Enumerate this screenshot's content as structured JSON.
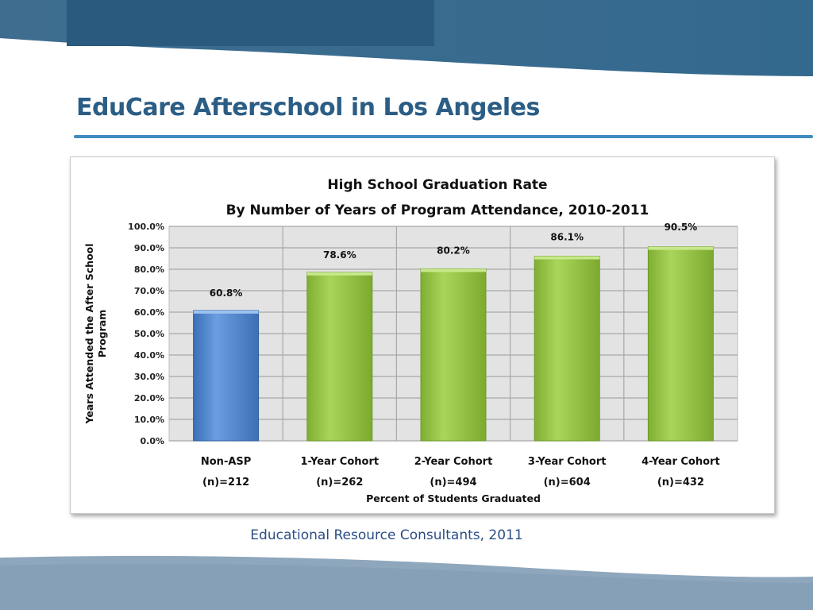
{
  "slide": {
    "title": "EduCare Afterschool in Los Angeles",
    "source": "Educational Resource Consultants, 2011"
  },
  "colors": {
    "title": "#2b5d85",
    "rule": "#3f8cc0",
    "non_asp_bar": "#5a8fd6",
    "cohort_bar": "#9ccc4a",
    "plot_background": "#e3e3e3"
  },
  "chart_data": {
    "type": "bar",
    "title": "High School Graduation Rate",
    "subtitle": "By Number of Years of Program Attendance, 2010-2011",
    "categories": [
      "Non-ASP",
      "1-Year Cohort",
      "2-Year Cohort",
      "3-Year Cohort",
      "4-Year Cohort"
    ],
    "category_sublabels": [
      "(n)=212",
      "(n)=262",
      "(n)=494",
      "(n)=604",
      "(n)=432"
    ],
    "values": [
      60.8,
      78.6,
      80.2,
      86.1,
      90.5
    ],
    "data_labels": [
      "60.8%",
      "78.6%",
      "80.2%",
      "86.1%",
      "90.5%"
    ],
    "bar_colors": [
      "#5a8fd6",
      "#9ccc4a",
      "#9ccc4a",
      "#9ccc4a",
      "#9ccc4a"
    ],
    "ylim": [
      0,
      100
    ],
    "ytick_values": [
      0,
      10,
      20,
      30,
      40,
      50,
      60,
      70,
      80,
      90,
      100
    ],
    "ytick_labels": [
      "0.0%",
      "10.0%",
      "20.0%",
      "30.0%",
      "40.0%",
      "50.0%",
      "60.0%",
      "70.0%",
      "80.0%",
      "90.0%",
      "100.0%"
    ],
    "ylabel_line1": "Years Attended the After School",
    "ylabel_line2": "Program",
    "xlabel": "Percent of Students Graduated",
    "grid": true,
    "legend": "none"
  }
}
